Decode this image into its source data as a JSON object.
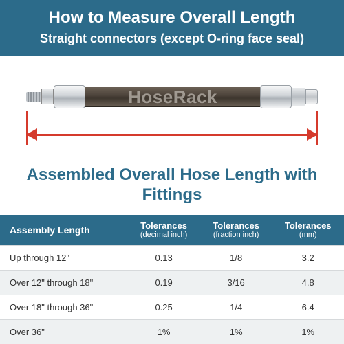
{
  "colors": {
    "brand": "#2c6b8a",
    "accent_red": "#d53a2c",
    "row_alt": "#eef1f2",
    "border": "#d6d9db",
    "text": "#333333",
    "white": "#ffffff"
  },
  "header": {
    "title": "How to Measure Overall Length",
    "subtitle": "Straight connectors (except O-ring face seal)"
  },
  "watermark": "HoseRack",
  "caption": "Assembled Overall Hose Length with Fittings",
  "table": {
    "columns": [
      {
        "label": "Assembly Length",
        "sublabel": ""
      },
      {
        "label": "Tolerances",
        "sublabel": "(decimal inch)"
      },
      {
        "label": "Tolerances",
        "sublabel": "(fraction inch)"
      },
      {
        "label": "Tolerances",
        "sublabel": "(mm)"
      }
    ],
    "rows": [
      [
        "Up through 12\"",
        "0.13",
        "1/8",
        "3.2"
      ],
      [
        "Over 12\" through 18\"",
        "0.19",
        "3/16",
        "4.8"
      ],
      [
        "Over 18\" through 36\"",
        "0.25",
        "1/4",
        "6.4"
      ],
      [
        "Over 36\"",
        "1%",
        "1%",
        "1%"
      ]
    ]
  }
}
